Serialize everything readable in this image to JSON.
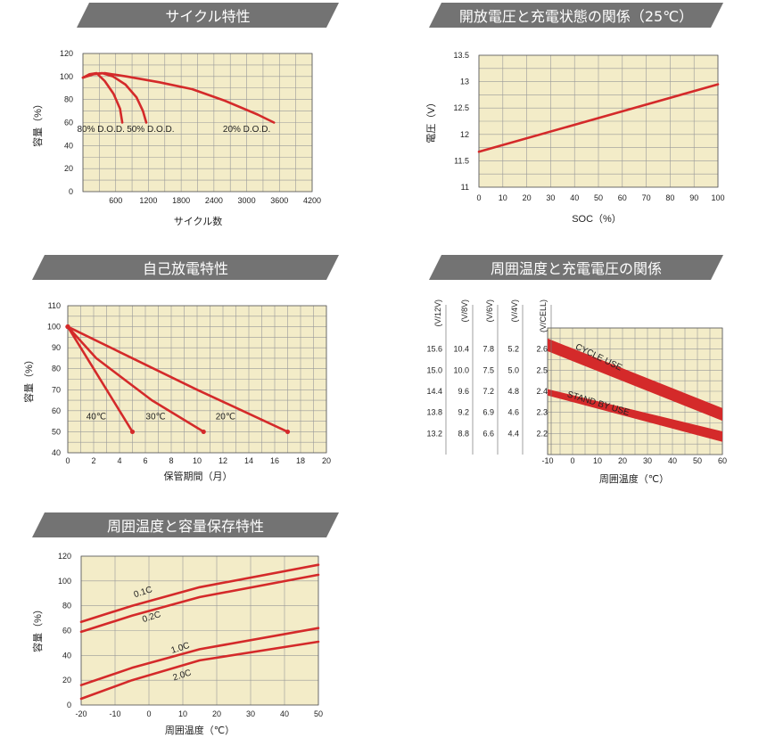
{
  "colors": {
    "plot_bg": "#f3ecc8",
    "grid": "#999999",
    "curve": "#d42a2a",
    "banner": "#737373"
  },
  "chart_data": [
    {
      "id": "cycle",
      "type": "line",
      "title": "サイクル特性",
      "xlabel": "サイクル数",
      "ylabel": "容量（%）",
      "xlim": [
        0,
        4200
      ],
      "ylim": [
        0,
        120
      ],
      "xticks": [
        600,
        1200,
        1800,
        2400,
        3000,
        3600,
        4200
      ],
      "yticks": [
        0,
        20,
        40,
        60,
        80,
        100,
        120
      ],
      "grid_x": [
        0,
        300,
        600,
        900,
        1200,
        1500,
        1800,
        2100,
        2400,
        2700,
        3000,
        3300,
        3600,
        3900,
        4200
      ],
      "grid_y": [
        0,
        10,
        20,
        30,
        40,
        50,
        60,
        70,
        80,
        90,
        100,
        110,
        120
      ],
      "series": [
        {
          "name": "80% D.O.D.",
          "points": [
            [
              0,
              99
            ],
            [
              120,
              102
            ],
            [
              250,
              103
            ],
            [
              400,
              96
            ],
            [
              560,
              85
            ],
            [
              680,
              72
            ],
            [
              720,
              60
            ]
          ]
        },
        {
          "name": "50% D.O.D.",
          "points": [
            [
              0,
              99
            ],
            [
              150,
              102
            ],
            [
              350,
              103
            ],
            [
              550,
              100
            ],
            [
              780,
              93
            ],
            [
              980,
              82
            ],
            [
              1100,
              70
            ],
            [
              1160,
              60
            ]
          ]
        },
        {
          "name": "20% D.O.D.",
          "points": [
            [
              0,
              99
            ],
            [
              200,
              102
            ],
            [
              400,
              103
            ],
            [
              800,
              100
            ],
            [
              1400,
              95
            ],
            [
              2000,
              89
            ],
            [
              2600,
              79
            ],
            [
              3200,
              67
            ],
            [
              3500,
              60
            ]
          ]
        }
      ],
      "annotations": [
        {
          "text": "80% D.O.D.",
          "x": 330,
          "y": 52
        },
        {
          "text": "50% D.O.D.",
          "x": 1240,
          "y": 52
        },
        {
          "text": "20% D.O.D.",
          "x": 3000,
          "y": 52
        }
      ]
    },
    {
      "id": "voltage_soc",
      "type": "line",
      "title": "開放電圧と充電状態の関係（25℃）",
      "xlabel": "SOC（%）",
      "ylabel": "電圧（V）",
      "xlim": [
        0,
        100
      ],
      "ylim": [
        11,
        13.5
      ],
      "xticks": [
        0,
        10,
        20,
        30,
        40,
        50,
        60,
        70,
        80,
        90,
        100
      ],
      "yticks": [
        11,
        11.5,
        12,
        12.5,
        13,
        13.5
      ],
      "grid_x": [
        0,
        10,
        20,
        30,
        40,
        50,
        60,
        70,
        80,
        90,
        100
      ],
      "grid_y": [
        11,
        11.25,
        11.5,
        11.75,
        12,
        12.25,
        12.5,
        12.75,
        13,
        13.25,
        13.5
      ],
      "series": [
        {
          "name": "",
          "points": [
            [
              0,
              11.67
            ],
            [
              100,
              12.95
            ]
          ]
        }
      ]
    },
    {
      "id": "self_discharge",
      "type": "line",
      "title": "自己放電特性",
      "xlabel": "保管期間（月）",
      "ylabel": "容量（%）",
      "xlim": [
        0,
        20
      ],
      "ylim": [
        40,
        110
      ],
      "xticks": [
        0,
        2,
        4,
        6,
        8,
        10,
        12,
        14,
        16,
        18,
        20
      ],
      "yticks": [
        40,
        50,
        60,
        70,
        80,
        90,
        100,
        110
      ],
      "grid_x": [
        0,
        1,
        2,
        3,
        4,
        5,
        6,
        7,
        8,
        9,
        10,
        11,
        12,
        13,
        14,
        15,
        16,
        17,
        18,
        19,
        20
      ],
      "grid_y": [
        40,
        45,
        50,
        55,
        60,
        65,
        70,
        75,
        80,
        85,
        90,
        95,
        100,
        105,
        110
      ],
      "series": [
        {
          "name": "40℃",
          "points": [
            [
              0,
              100
            ],
            [
              2,
              80
            ],
            [
              5,
              50
            ]
          ]
        },
        {
          "name": "30℃",
          "points": [
            [
              0,
              100
            ],
            [
              2.2,
              85
            ],
            [
              6.5,
              65
            ],
            [
              10.5,
              50
            ]
          ]
        },
        {
          "name": "20℃",
          "points": [
            [
              0,
              100
            ],
            [
              4,
              88
            ],
            [
              10,
              70
            ],
            [
              17,
              50
            ]
          ]
        }
      ],
      "annotations": [
        {
          "text": "40℃",
          "x": 2.2,
          "y": 56
        },
        {
          "text": "30℃",
          "x": 6.8,
          "y": 56
        },
        {
          "text": "20℃",
          "x": 12.2,
          "y": 56
        }
      ]
    },
    {
      "id": "temp_charge_voltage",
      "type": "area",
      "title": "周囲温度と充電電圧の関係",
      "xlabel": "周囲温度（℃）",
      "xlim": [
        -10,
        60
      ],
      "ylim": [
        2.1,
        2.7
      ],
      "xticks": [
        -10,
        0,
        10,
        20,
        30,
        40,
        50,
        60
      ],
      "grid_x": [
        -10,
        -5,
        0,
        5,
        10,
        15,
        20,
        25,
        30,
        35,
        40,
        45,
        50,
        55,
        60
      ],
      "grid_y": [
        2.1,
        2.15,
        2.2,
        2.25,
        2.3,
        2.35,
        2.4,
        2.45,
        2.5,
        2.55,
        2.6,
        2.65,
        2.7
      ],
      "scales": [
        {
          "unit": "(V/12V)",
          "ticks": [
            {
              "label": "15.6",
              "v": 2.6
            },
            {
              "label": "15.0",
              "v": 2.5
            },
            {
              "label": "14.4",
              "v": 2.4
            },
            {
              "label": "13.8",
              "v": 2.3
            },
            {
              "label": "13.2",
              "v": 2.2
            }
          ]
        },
        {
          "unit": "(V/8V)",
          "ticks": [
            {
              "label": "10.4",
              "v": 2.6
            },
            {
              "label": "10.0",
              "v": 2.5
            },
            {
              "label": "9.6",
              "v": 2.4
            },
            {
              "label": "9.2",
              "v": 2.3
            },
            {
              "label": "8.8",
              "v": 2.2
            }
          ]
        },
        {
          "unit": "(V/6V)",
          "ticks": [
            {
              "label": "7.8",
              "v": 2.6
            },
            {
              "label": "7.5",
              "v": 2.5
            },
            {
              "label": "7.2",
              "v": 2.4
            },
            {
              "label": "6.9",
              "v": 2.3
            },
            {
              "label": "6.6",
              "v": 2.2
            }
          ]
        },
        {
          "unit": "(V/4V)",
          "ticks": [
            {
              "label": "5.2",
              "v": 2.6
            },
            {
              "label": "5.0",
              "v": 2.5
            },
            {
              "label": "4.8",
              "v": 2.4
            },
            {
              "label": "4.6",
              "v": 2.3
            },
            {
              "label": "4.4",
              "v": 2.2
            }
          ]
        },
        {
          "unit": "(V/CELL)",
          "ticks": [
            {
              "label": "2.6",
              "v": 2.6
            },
            {
              "label": "2.5",
              "v": 2.5
            },
            {
              "label": "2.4",
              "v": 2.4
            },
            {
              "label": "2.3",
              "v": 2.3
            },
            {
              "label": "2.2",
              "v": 2.2
            }
          ]
        }
      ],
      "bands": [
        {
          "name": "CYCLE USE",
          "upper": [
            [
              -10,
              2.65
            ],
            [
              60,
              2.32
            ]
          ],
          "lower": [
            [
              -10,
              2.59
            ],
            [
              60,
              2.26
            ]
          ]
        },
        {
          "name": "STAND BY USE",
          "upper": [
            [
              -10,
              2.41
            ],
            [
              60,
              2.21
            ]
          ],
          "lower": [
            [
              -10,
              2.38
            ],
            [
              60,
              2.16
            ]
          ]
        }
      ],
      "annotations": [
        {
          "text": "CYCLE USE",
          "x": 10,
          "y": 2.55,
          "rotate": 26
        },
        {
          "text": "STAND BY USE",
          "x": 10,
          "y": 2.33,
          "rotate": 17
        }
      ]
    },
    {
      "id": "temp_capacity",
      "type": "line",
      "title": "周囲温度と容量保存特性",
      "xlabel": "周囲温度（℃）",
      "ylabel": "容量（%）",
      "xlim": [
        -20,
        50
      ],
      "ylim": [
        0,
        120
      ],
      "xticks": [
        -20,
        -10,
        0,
        10,
        20,
        30,
        40,
        50
      ],
      "yticks": [
        0,
        20,
        40,
        60,
        80,
        100,
        120
      ],
      "grid_x": [
        -20,
        -10,
        0,
        10,
        20,
        30,
        40,
        50
      ],
      "grid_y": [
        0,
        20,
        40,
        60,
        80,
        100,
        120
      ],
      "series": [
        {
          "name": "0.1C",
          "points": [
            [
              -20,
              67
            ],
            [
              -5,
              80
            ],
            [
              15,
              95
            ],
            [
              50,
              113
            ]
          ]
        },
        {
          "name": "0.2C",
          "points": [
            [
              -20,
              59
            ],
            [
              -5,
              72
            ],
            [
              15,
              87
            ],
            [
              50,
              105
            ]
          ]
        },
        {
          "name": "1.0C",
          "points": [
            [
              -20,
              16
            ],
            [
              -5,
              30
            ],
            [
              15,
              45
            ],
            [
              50,
              62
            ]
          ]
        },
        {
          "name": "2.0C",
          "points": [
            [
              -20,
              5
            ],
            [
              -5,
              20
            ],
            [
              15,
              36
            ],
            [
              50,
              51
            ]
          ]
        }
      ],
      "annotations": [
        {
          "text": "0.1C",
          "x": -1.5,
          "y": 89,
          "rotate": -18
        },
        {
          "text": "0.2C",
          "x": 1,
          "y": 69,
          "rotate": -18
        },
        {
          "text": "1.0C",
          "x": 9.5,
          "y": 44,
          "rotate": -18
        },
        {
          "text": "2.0C",
          "x": 10,
          "y": 22,
          "rotate": -18
        }
      ]
    }
  ]
}
